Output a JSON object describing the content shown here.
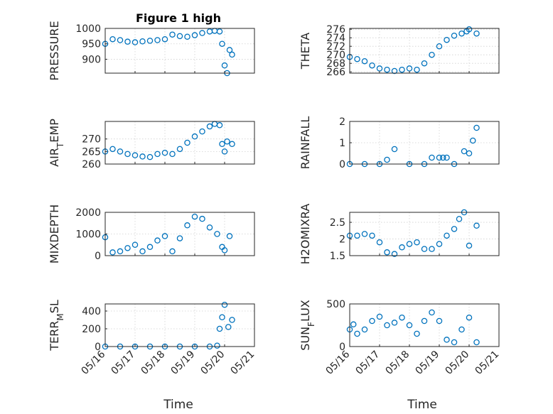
{
  "figure": {
    "title": "Figure 1 high",
    "xlabel": "Time",
    "x_ticks": [
      "05/16",
      "05/17",
      "05/18",
      "05/19",
      "05/20",
      "05/21"
    ],
    "marker_color": "#0072BD"
  },
  "chart_data": [
    {
      "type": "scatter",
      "ylabel": "PRESSURE",
      "ylim": [
        855,
        1000
      ],
      "yticks": [
        "900",
        "950",
        "1000"
      ],
      "xlim": [
        "05/16",
        "05/21"
      ],
      "grid": true,
      "x": [
        "05/16 00:00",
        "05/16 06:00",
        "05/16 12:00",
        "05/16 18:00",
        "05/17 00:00",
        "05/17 06:00",
        "05/17 12:00",
        "05/17 18:00",
        "05/18 00:00",
        "05/18 06:00",
        "05/18 12:00",
        "05/18 18:00",
        "05/19 00:00",
        "05/19 06:00",
        "05/19 12:00",
        "05/19 16:00",
        "05/19 20:00",
        "05/19 22:00",
        "05/20 00:00",
        "05/20 02:00",
        "05/20 04:00",
        "05/20 06:00"
      ],
      "y": [
        950,
        965,
        962,
        957,
        955,
        958,
        960,
        962,
        965,
        980,
        975,
        973,
        978,
        985,
        990,
        992,
        990,
        950,
        880,
        855,
        930,
        915
      ]
    },
    {
      "type": "scatter",
      "ylabel": "THETA",
      "ylim": [
        265.7,
        276.2
      ],
      "yticks": [
        "266",
        "268",
        "270",
        "272",
        "274",
        "276"
      ],
      "xlim": [
        "05/16",
        "05/21"
      ],
      "grid": true,
      "x": [
        "05/16 00:00",
        "05/16 06:00",
        "05/16 12:00",
        "05/16 18:00",
        "05/17 00:00",
        "05/17 06:00",
        "05/17 12:00",
        "05/17 18:00",
        "05/18 00:00",
        "05/18 06:00",
        "05/18 12:00",
        "05/18 18:00",
        "05/19 00:00",
        "05/19 06:00",
        "05/19 12:00",
        "05/19 18:00",
        "05/19 22:00",
        "05/20 00:00",
        "05/20 06:00"
      ],
      "y": [
        269.5,
        269.0,
        268.5,
        267.5,
        266.8,
        266.5,
        266.2,
        266.5,
        266.8,
        266.5,
        268.0,
        270.0,
        272.0,
        273.5,
        274.5,
        275.0,
        275.5,
        276.0,
        275.0
      ]
    },
    {
      "type": "scatter",
      "ylabel": "AIR_TEMP",
      "ylim": [
        260,
        277
      ],
      "yticks": [
        "260",
        "265",
        "270"
      ],
      "xlim": [
        "05/16",
        "05/21"
      ],
      "grid": true,
      "x": [
        "05/16 00:00",
        "05/16 06:00",
        "05/16 12:00",
        "05/16 18:00",
        "05/17 00:00",
        "05/17 06:00",
        "05/17 12:00",
        "05/17 18:00",
        "05/18 00:00",
        "05/18 06:00",
        "05/18 12:00",
        "05/18 18:00",
        "05/19 00:00",
        "05/19 06:00",
        "05/19 12:00",
        "05/19 16:00",
        "05/19 20:00",
        "05/19 22:00",
        "05/20 00:00",
        "05/20 02:00",
        "05/20 06:00"
      ],
      "y": [
        265.0,
        266.0,
        265.0,
        264.0,
        263.5,
        263.0,
        262.8,
        264.0,
        264.5,
        264.0,
        266.0,
        268.5,
        271.0,
        273.0,
        275.0,
        276.0,
        275.5,
        268.0,
        265.0,
        269.0,
        268.0
      ]
    },
    {
      "type": "scatter",
      "ylabel": "RAINFALL",
      "ylim": [
        0,
        2
      ],
      "yticks": [
        "0",
        "1",
        "2"
      ],
      "xlim": [
        "05/16",
        "05/21"
      ],
      "grid": true,
      "x": [
        "05/16 00:00",
        "05/16 12:00",
        "05/17 00:00",
        "05/17 06:00",
        "05/17 12:00",
        "05/18 00:00",
        "05/18 12:00",
        "05/18 18:00",
        "05/19 00:00",
        "05/19 03:00",
        "05/19 06:00",
        "05/19 12:00",
        "05/19 20:00",
        "05/20 00:00",
        "05/20 03:00",
        "05/20 06:00"
      ],
      "y": [
        0,
        0,
        0,
        0.2,
        0.7,
        0,
        0,
        0.3,
        0.3,
        0.3,
        0.3,
        0,
        0.6,
        0.5,
        1.1,
        1.7
      ]
    },
    {
      "type": "scatter",
      "ylabel": "MIXDEPTH",
      "ylim": [
        0,
        2000
      ],
      "yticks": [
        "0",
        "1000",
        "2000"
      ],
      "xlim": [
        "05/16",
        "05/21"
      ],
      "grid": true,
      "x": [
        "05/16 00:00",
        "05/16 06:00",
        "05/16 12:00",
        "05/16 18:00",
        "05/17 00:00",
        "05/17 06:00",
        "05/17 12:00",
        "05/17 18:00",
        "05/18 00:00",
        "05/18 06:00",
        "05/18 12:00",
        "05/18 18:00",
        "05/19 00:00",
        "05/19 06:00",
        "05/19 12:00",
        "05/19 18:00",
        "05/19 22:00",
        "05/20 00:00",
        "05/20 04:00"
      ],
      "y": [
        850,
        150,
        200,
        350,
        500,
        200,
        400,
        700,
        900,
        200,
        800,
        1400,
        1800,
        1700,
        1300,
        1000,
        400,
        250,
        900
      ]
    },
    {
      "type": "scatter",
      "ylabel": "H2OMIXRA",
      "ylim": [
        1.5,
        2.8
      ],
      "yticks": [
        "1.5",
        "2",
        "2.5"
      ],
      "xlim": [
        "05/16",
        "05/21"
      ],
      "grid": true,
      "x": [
        "05/16 00:00",
        "05/16 06:00",
        "05/16 12:00",
        "05/16 18:00",
        "05/17 00:00",
        "05/17 06:00",
        "05/17 12:00",
        "05/17 18:00",
        "05/18 00:00",
        "05/18 06:00",
        "05/18 12:00",
        "05/18 18:00",
        "05/19 00:00",
        "05/19 06:00",
        "05/19 12:00",
        "05/19 16:00",
        "05/19 20:00",
        "05/20 00:00",
        "05/20 06:00"
      ],
      "y": [
        2.1,
        2.1,
        2.15,
        2.1,
        1.9,
        1.6,
        1.55,
        1.75,
        1.85,
        1.9,
        1.7,
        1.7,
        1.85,
        2.1,
        2.3,
        2.6,
        2.8,
        1.8,
        2.4
      ]
    },
    {
      "type": "scatter",
      "ylabel": "TERR_MSL",
      "ylim": [
        0,
        480
      ],
      "yticks": [
        "0",
        "200",
        "400"
      ],
      "xlim": [
        "05/16",
        "05/21"
      ],
      "grid": true,
      "x": [
        "05/16 00:00",
        "05/16 12:00",
        "05/17 00:00",
        "05/17 12:00",
        "05/18 00:00",
        "05/18 12:00",
        "05/19 00:00",
        "05/19 12:00",
        "05/19 18:00",
        "05/19 20:00",
        "05/19 22:00",
        "05/20 00:00",
        "05/20 03:00",
        "05/20 06:00"
      ],
      "y": [
        0,
        0,
        0,
        0,
        0,
        0,
        0,
        0,
        10,
        200,
        330,
        470,
        220,
        300
      ]
    },
    {
      "type": "scatter",
      "ylabel": "SUN_FLUX",
      "ylim": [
        0,
        500
      ],
      "yticks": [
        "0",
        "500"
      ],
      "xlim": [
        "05/16",
        "05/21"
      ],
      "grid": true,
      "x": [
        "05/16 00:00",
        "05/16 03:00",
        "05/16 06:00",
        "05/16 12:00",
        "05/16 18:00",
        "05/17 00:00",
        "05/17 06:00",
        "05/17 12:00",
        "05/17 18:00",
        "05/18 00:00",
        "05/18 06:00",
        "05/18 12:00",
        "05/18 18:00",
        "05/19 00:00",
        "05/19 06:00",
        "05/19 12:00",
        "05/19 18:00",
        "05/20 00:00",
        "05/20 06:00"
      ],
      "y": [
        200,
        260,
        150,
        200,
        300,
        350,
        250,
        280,
        340,
        250,
        150,
        300,
        400,
        300,
        80,
        50,
        200,
        340,
        50
      ]
    }
  ]
}
